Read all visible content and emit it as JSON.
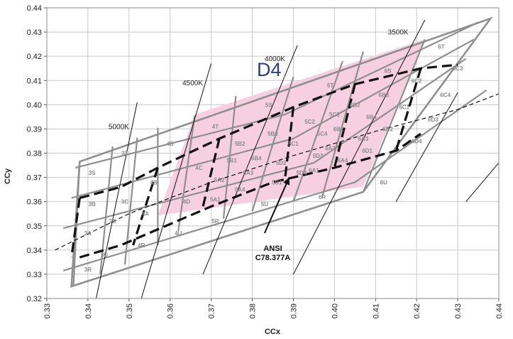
{
  "chart_data": {
    "type": "scatter",
    "xlabel": "CCx",
    "ylabel": "CCy",
    "xlim": [
      0.33,
      0.44
    ],
    "ylim": [
      0.32,
      0.44
    ],
    "x_ticks": [
      "0.33",
      "0.34",
      "0.35",
      "0.36",
      "0.37",
      "0.38",
      "0.39",
      "0.40",
      "0.41",
      "0.42",
      "0.43",
      "0.44"
    ],
    "y_ticks": [
      "0.32",
      "0.33",
      "0.34",
      "0.35",
      "0.36",
      "0.37",
      "0.38",
      "0.39",
      "0.40",
      "0.41",
      "0.42",
      "0.43",
      "0.44"
    ],
    "grid": true,
    "highlight_label": "D4",
    "highlight_color": "#f6cfe0",
    "highlight_region": [
      [
        0.357,
        0.3542
      ],
      [
        0.407,
        0.3662
      ],
      [
        0.422,
        0.427
      ],
      [
        0.366,
        0.396
      ]
    ],
    "bin_outline": [
      [
        0.336,
        0.325
      ],
      [
        0.407,
        0.364
      ],
      [
        0.438,
        0.4356
      ],
      [
        0.338,
        0.3765
      ]
    ],
    "bin_grid_lines": [
      {
        "points": [
          [
            0.3365,
            0.3255
          ],
          [
            0.338,
            0.3765
          ]
        ]
      },
      {
        "points": [
          [
            0.343,
            0.33
          ],
          [
            0.346,
            0.3828
          ]
        ]
      },
      {
        "points": [
          [
            0.349,
            0.334
          ],
          [
            0.352,
            0.3864
          ]
        ]
      },
      {
        "points": [
          [
            0.357,
            0.342
          ],
          [
            0.357,
            0.3905
          ]
        ]
      },
      {
        "points": [
          [
            0.362,
            0.348
          ],
          [
            0.366,
            0.3956
          ]
        ]
      },
      {
        "points": [
          [
            0.373,
            0.353
          ],
          [
            0.376,
            0.4036
          ]
        ]
      },
      {
        "points": [
          [
            0.38,
            0.356
          ],
          [
            0.39,
            0.4115
          ]
        ]
      },
      {
        "points": [
          [
            0.39,
            0.36
          ],
          [
            0.402,
            0.418
          ]
        ]
      },
      {
        "points": [
          [
            0.397,
            0.362
          ],
          [
            0.407,
            0.422
          ]
        ]
      },
      {
        "points": [
          [
            0.407,
            0.364
          ],
          [
            0.422,
            0.427
          ]
        ]
      },
      {
        "points": [
          [
            0.334,
            0.3315
          ],
          [
            0.405,
            0.368
          ],
          [
            0.437,
            0.406
          ]
        ]
      },
      {
        "points": [
          [
            0.334,
            0.349
          ],
          [
            0.395,
            0.376
          ],
          [
            0.432,
            0.419
          ]
        ]
      },
      {
        "points": [
          [
            0.336,
            0.3615
          ],
          [
            0.39,
            0.386
          ],
          [
            0.434,
            0.427
          ]
        ]
      },
      {
        "points": [
          [
            0.337,
            0.374
          ],
          [
            0.388,
            0.396
          ],
          [
            0.435,
            0.434
          ]
        ]
      }
    ],
    "ansi_boundary": [
      {
        "points": [
          [
            0.338,
            0.3615
          ],
          [
            0.348,
            0.366
          ],
          [
            0.357,
            0.374
          ],
          [
            0.372,
            0.386
          ],
          [
            0.39,
            0.399
          ],
          [
            0.405,
            0.4085
          ],
          [
            0.421,
            0.415
          ],
          [
            0.43,
            0.4165
          ]
        ]
      },
      {
        "points": [
          [
            0.338,
            0.337
          ],
          [
            0.348,
            0.342
          ],
          [
            0.359,
            0.35
          ],
          [
            0.37,
            0.358
          ],
          [
            0.385,
            0.368
          ],
          [
            0.4,
            0.374
          ],
          [
            0.415,
            0.381
          ],
          [
            0.421,
            0.388
          ]
        ]
      },
      {
        "points": [
          [
            0.338,
            0.3615
          ],
          [
            0.336,
            0.337
          ]
        ]
      },
      {
        "points": [
          [
            0.357,
            0.374
          ],
          [
            0.351,
            0.342
          ]
        ]
      },
      {
        "points": [
          [
            0.372,
            0.386
          ],
          [
            0.368,
            0.358
          ]
        ]
      },
      {
        "points": [
          [
            0.39,
            0.399
          ],
          [
            0.388,
            0.37
          ]
        ]
      },
      {
        "points": [
          [
            0.405,
            0.4085
          ],
          [
            0.4,
            0.374
          ]
        ]
      },
      {
        "points": [
          [
            0.421,
            0.415
          ],
          [
            0.415,
            0.381
          ]
        ]
      }
    ],
    "planckian_locus": [
      [
        0.332,
        0.34
      ],
      [
        0.35,
        0.355
      ],
      [
        0.37,
        0.368
      ],
      [
        0.39,
        0.379
      ],
      [
        0.41,
        0.389
      ],
      [
        0.43,
        0.398
      ],
      [
        0.44,
        0.4045
      ]
    ],
    "isotherms": [
      {
        "label": "5000K",
        "points": [
          [
            0.342,
            0.32
          ],
          [
            0.352,
            0.401
          ]
        ],
        "label_at": [
          0.35,
          0.39
        ]
      },
      {
        "label": "4500K",
        "points": [
          [
            0.353,
            0.32
          ],
          [
            0.37,
            0.417
          ]
        ],
        "label_at": [
          0.368,
          0.408
        ]
      },
      {
        "label": "4000K",
        "points": [
          [
            0.368,
            0.33
          ],
          [
            0.391,
            0.4245
          ]
        ],
        "label_at": [
          0.388,
          0.418
        ]
      },
      {
        "label": "3500K",
        "points": [
          [
            0.39,
            0.33
          ],
          [
            0.422,
            0.435
          ]
        ],
        "label_at": [
          0.418,
          0.429
        ]
      },
      {
        "label": "",
        "points": [
          [
            0.415,
            0.36
          ],
          [
            0.43,
            0.405
          ]
        ],
        "label_at": null
      },
      {
        "label": "",
        "points": [
          [
            0.432,
            0.36
          ],
          [
            0.44,
            0.376
          ]
        ],
        "label_at": null
      }
    ],
    "bin_labels": [
      {
        "label": "3S",
        "at": [
          0.341,
          0.372
        ]
      },
      {
        "label": "3T",
        "at": [
          0.349,
          0.38
        ]
      },
      {
        "label": "3C",
        "at": [
          0.349,
          0.36
        ]
      },
      {
        "label": "3B",
        "at": [
          0.341,
          0.359
        ]
      },
      {
        "label": "3D",
        "at": [
          0.346,
          0.352
        ]
      },
      {
        "label": "3A",
        "at": [
          0.34,
          0.347
        ]
      },
      {
        "label": "3U",
        "at": [
          0.344,
          0.338
        ]
      },
      {
        "label": "3R",
        "at": [
          0.34,
          0.332
        ]
      },
      {
        "label": "4S",
        "at": [
          0.36,
          0.384
        ]
      },
      {
        "label": "4B",
        "at": [
          0.356,
          0.368
        ]
      },
      {
        "label": "4A",
        "at": [
          0.354,
          0.355
        ]
      },
      {
        "label": "4R",
        "at": [
          0.353,
          0.342
        ]
      },
      {
        "label": "4T",
        "at": [
          0.371,
          0.391
        ]
      },
      {
        "label": "4C",
        "at": [
          0.367,
          0.374
        ]
      },
      {
        "label": "4D",
        "at": [
          0.364,
          0.36
        ]
      },
      {
        "label": "4U",
        "at": [
          0.362,
          0.347
        ]
      },
      {
        "label": "5S",
        "at": [
          0.384,
          0.4
        ]
      },
      {
        "label": "5B2",
        "at": [
          0.377,
          0.384
        ]
      },
      {
        "label": "5B1",
        "at": [
          0.375,
          0.377
        ]
      },
      {
        "label": "5A2",
        "at": [
          0.372,
          0.369
        ]
      },
      {
        "label": "5A1",
        "at": [
          0.371,
          0.361
        ]
      },
      {
        "label": "5R",
        "at": [
          0.371,
          0.352
        ]
      },
      {
        "label": "5B3",
        "at": [
          0.385,
          0.388
        ]
      },
      {
        "label": "5B4",
        "at": [
          0.381,
          0.378
        ]
      },
      {
        "label": "5A3",
        "at": [
          0.379,
          0.372
        ]
      },
      {
        "label": "5A4",
        "at": [
          0.377,
          0.365
        ]
      },
      {
        "label": "5T",
        "at": [
          0.399,
          0.408
        ]
      },
      {
        "label": "5C2",
        "at": [
          0.394,
          0.393
        ]
      },
      {
        "label": "5C1",
        "at": [
          0.39,
          0.384
        ]
      },
      {
        "label": "5D2",
        "at": [
          0.387,
          0.376
        ]
      },
      {
        "label": "5D1",
        "at": [
          0.386,
          0.368
        ]
      },
      {
        "label": "5U",
        "at": [
          0.383,
          0.359
        ]
      },
      {
        "label": "5C3",
        "at": [
          0.4,
          0.396
        ]
      },
      {
        "label": "5C4",
        "at": [
          0.397,
          0.388
        ]
      },
      {
        "label": "5D3",
        "at": [
          0.396,
          0.379
        ]
      },
      {
        "label": "5D4",
        "at": [
          0.392,
          0.372
        ]
      },
      {
        "label": "6S",
        "at": [
          0.413,
          0.414
        ]
      },
      {
        "label": "6B2",
        "at": [
          0.405,
          0.4
        ]
      },
      {
        "label": "6B1",
        "at": [
          0.401,
          0.39
        ]
      },
      {
        "label": "6A2",
        "at": [
          0.399,
          0.382
        ]
      },
      {
        "label": "6A1",
        "at": [
          0.395,
          0.373
        ]
      },
      {
        "label": "6R",
        "at": [
          0.397,
          0.362
        ]
      },
      {
        "label": "6B3",
        "at": [
          0.412,
          0.404
        ]
      },
      {
        "label": "6B4",
        "at": [
          0.409,
          0.395
        ]
      },
      {
        "label": "6A3",
        "at": [
          0.407,
          0.386
        ]
      },
      {
        "label": "6A4",
        "at": [
          0.402,
          0.377
        ]
      },
      {
        "label": "6T",
        "at": [
          0.426,
          0.424
        ]
      },
      {
        "label": "6C2",
        "at": [
          0.42,
          0.41
        ]
      },
      {
        "label": "6C1",
        "at": [
          0.417,
          0.399
        ]
      },
      {
        "label": "6D2",
        "at": [
          0.413,
          0.39
        ]
      },
      {
        "label": "6D1",
        "at": [
          0.408,
          0.381
        ]
      },
      {
        "label": "6U",
        "at": [
          0.412,
          0.368
        ]
      },
      {
        "label": "6C3",
        "at": [
          0.43,
          0.415
        ]
      },
      {
        "label": "6C4",
        "at": [
          0.427,
          0.404
        ]
      },
      {
        "label": "6D3",
        "at": [
          0.424,
          0.394
        ]
      },
      {
        "label": "6D4",
        "at": [
          0.42,
          0.385
        ]
      }
    ],
    "annotation": {
      "text_lines": [
        "ANSI",
        "C78.377A"
      ],
      "label_at": [
        0.385,
        0.342
      ],
      "arrow_from": [
        0.383,
        0.347
      ],
      "arrow_to": [
        0.389,
        0.37
      ]
    }
  }
}
